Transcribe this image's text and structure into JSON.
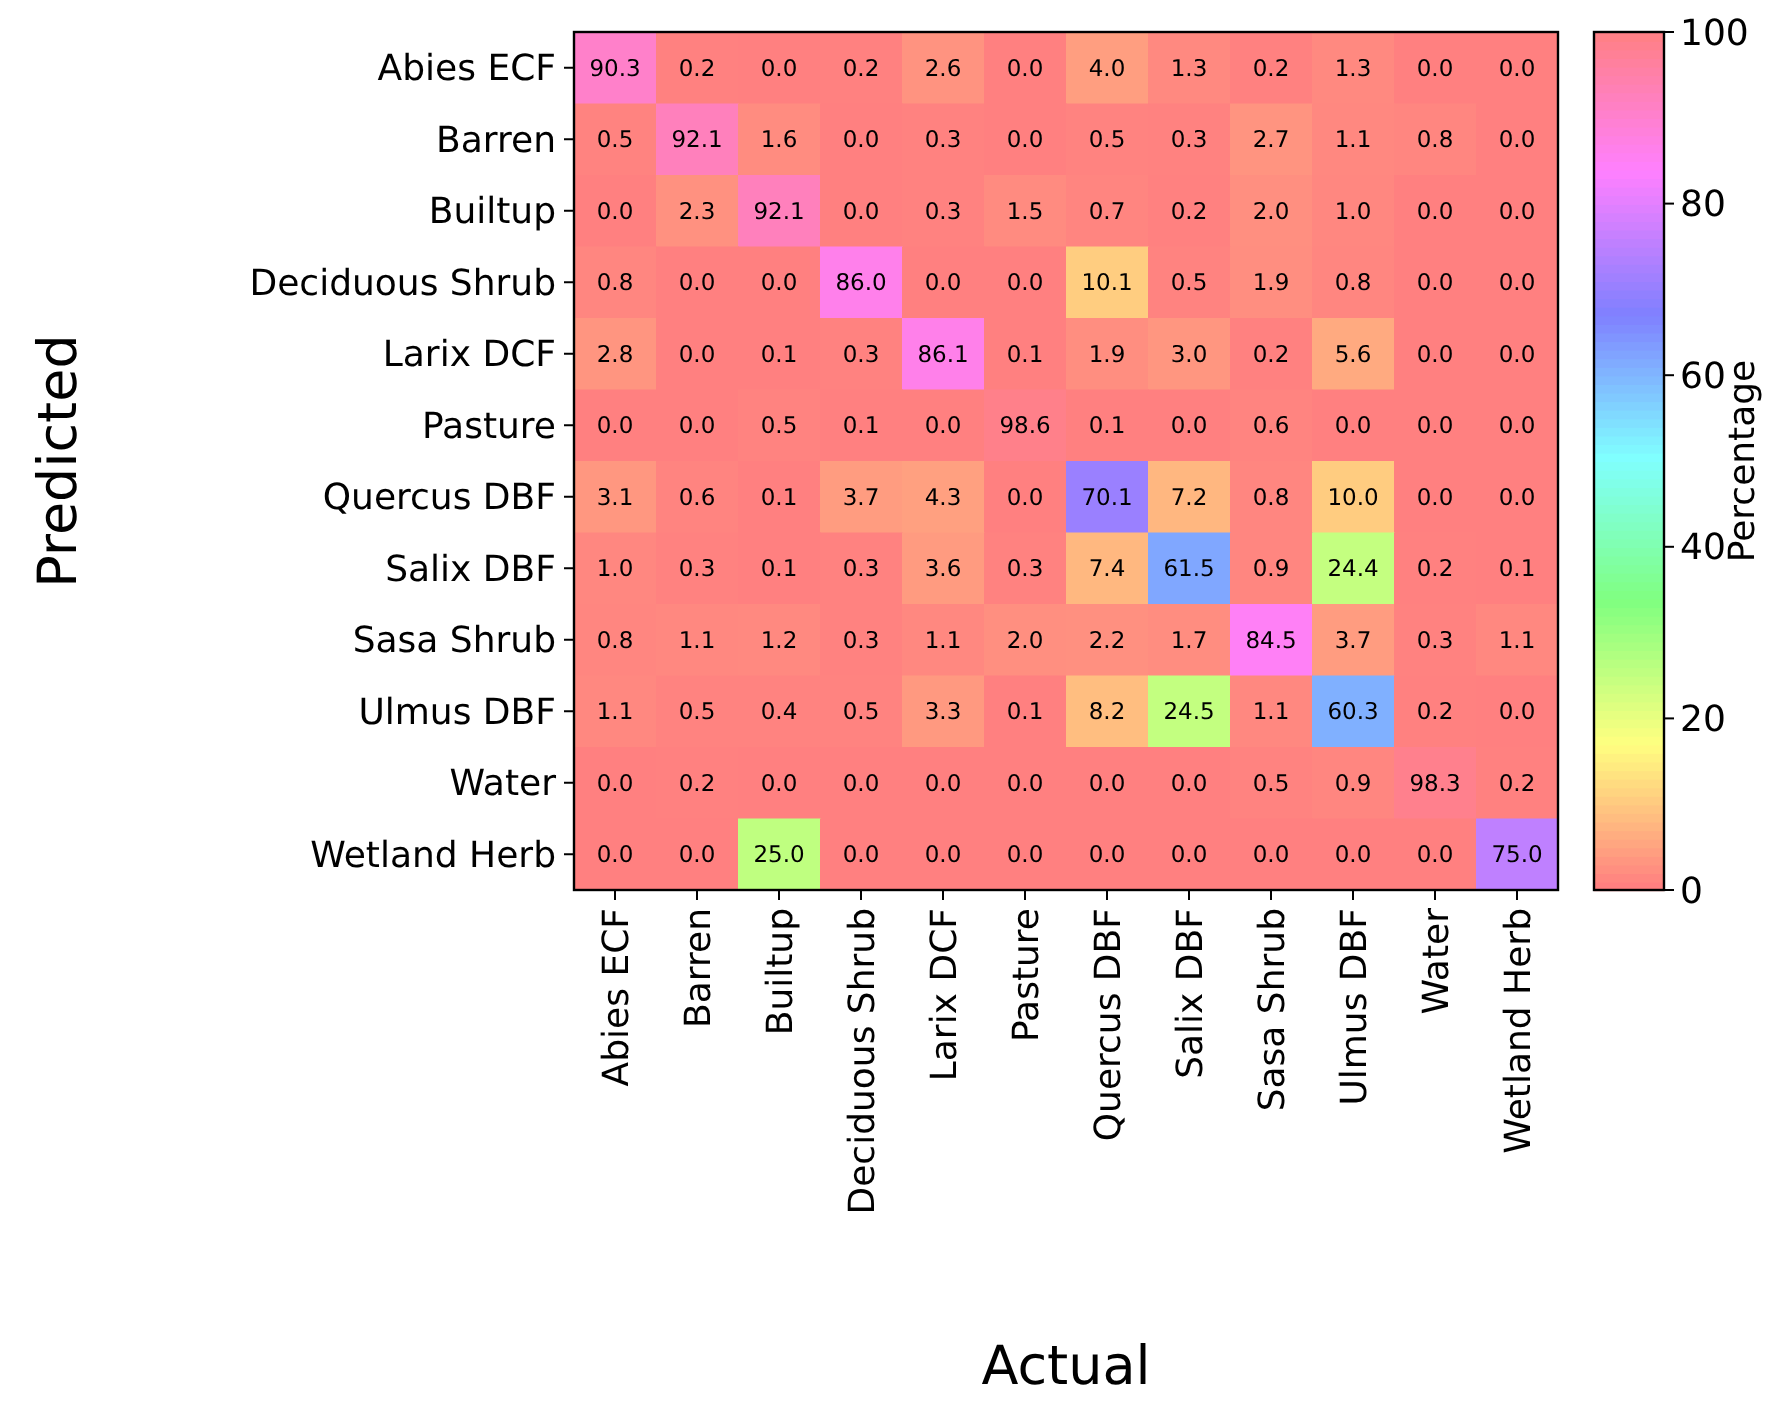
{
  "chart_data": {
    "type": "heatmap",
    "xlabel": "Actual",
    "ylabel": "Predicted",
    "clabel": "Percentage",
    "categories": [
      "Abies ECF",
      "Barren",
      "Builtup",
      "Deciduous Shrub",
      "Larix DCF",
      "Pasture",
      "Quercus DBF",
      "Salix DBF",
      "Sasa Shrub",
      "Ulmus DBF",
      "Water",
      "Wetland Herb"
    ],
    "y_categories": [
      "Abies ECF",
      "Barren",
      "Builtup",
      "Deciduous Shrub",
      "Larix DCF",
      "Pasture",
      "Quercus DBF",
      "Salix DBF",
      "Sasa Shrub",
      "Ulmus DBF",
      "Water",
      "Wetland Herb"
    ],
    "cells": [
      [
        90.3,
        0.2,
        0.0,
        0.2,
        2.6,
        0.0,
        4.0,
        1.3,
        0.2,
        1.3,
        0.0,
        0.0
      ],
      [
        0.5,
        92.1,
        1.6,
        0.0,
        0.3,
        0.0,
        0.5,
        0.3,
        2.7,
        1.1,
        0.8,
        0.0
      ],
      [
        0.0,
        2.3,
        92.1,
        0.0,
        0.3,
        1.5,
        0.7,
        0.2,
        2.0,
        1.0,
        0.0,
        0.0
      ],
      [
        0.8,
        0.0,
        0.0,
        86.0,
        0.0,
        0.0,
        10.1,
        0.5,
        1.9,
        0.8,
        0.0,
        0.0
      ],
      [
        2.8,
        0.0,
        0.1,
        0.3,
        86.1,
        0.1,
        1.9,
        3.0,
        0.2,
        5.6,
        0.0,
        0.0
      ],
      [
        0.0,
        0.0,
        0.5,
        0.1,
        0.0,
        98.6,
        0.1,
        0.0,
        0.6,
        0.0,
        0.0,
        0.0
      ],
      [
        3.1,
        0.6,
        0.1,
        3.7,
        4.3,
        0.0,
        70.1,
        7.2,
        0.8,
        10.0,
        0.0,
        0.0
      ],
      [
        1.0,
        0.3,
        0.1,
        0.3,
        3.6,
        0.3,
        7.4,
        61.5,
        0.9,
        24.4,
        0.2,
        0.1
      ],
      [
        0.8,
        1.1,
        1.2,
        0.3,
        1.1,
        2.0,
        2.2,
        1.7,
        84.5,
        3.7,
        0.3,
        1.1
      ],
      [
        1.1,
        0.5,
        0.4,
        0.5,
        3.3,
        0.1,
        8.2,
        24.5,
        1.1,
        60.3,
        0.2,
        0.0
      ],
      [
        0.0,
        0.2,
        0.0,
        0.0,
        0.0,
        0.0,
        0.0,
        0.0,
        0.5,
        0.9,
        98.3,
        0.2
      ],
      [
        0.0,
        0.0,
        25.0,
        0.0,
        0.0,
        0.0,
        0.0,
        0.0,
        0.0,
        0.0,
        0.0,
        75.0
      ]
    ],
    "cell_labels": [
      [
        "90.3",
        "0.2",
        "0.0",
        "0.2",
        "2.6",
        "0.0",
        "4.0",
        "1.3",
        "0.2",
        "1.3",
        "0.0",
        "0.0"
      ],
      [
        "0.5",
        "92.1",
        "1.6",
        "0.0",
        "0.3",
        "0.0",
        "0.5",
        "0.3",
        "2.7",
        "1.1",
        "0.8",
        "0.0"
      ],
      [
        "0.0",
        "2.3",
        "92.1",
        "0.0",
        "0.3",
        "1.5",
        "0.7",
        "0.2",
        "2.0",
        "1.0",
        "0.0",
        "0.0"
      ],
      [
        "0.8",
        "0.0",
        "0.0",
        "86.0",
        "0.0",
        "0.0",
        "10.1",
        "0.5",
        "1.9",
        "0.8",
        "0.0",
        "0.0"
      ],
      [
        "2.8",
        "0.0",
        "0.1",
        "0.3",
        "86.1",
        "0.1",
        "1.9",
        "3.0",
        "0.2",
        "5.6",
        "0.0",
        "0.0"
      ],
      [
        "0.0",
        "0.0",
        "0.5",
        "0.1",
        "0.0",
        "98.6",
        "0.1",
        "0.0",
        "0.6",
        "0.0",
        "0.0",
        "0.0"
      ],
      [
        "3.1",
        "0.6",
        "0.1",
        "3.7",
        "4.3",
        "0.0",
        "70.1",
        "7.2",
        "0.8",
        "10.0",
        "0.0",
        "0.0"
      ],
      [
        "1.0",
        "0.3",
        "0.1",
        "0.3",
        "3.6",
        "0.3",
        "7.4",
        "61.5",
        "0.9",
        "24.4",
        "0.2",
        "0.1"
      ],
      [
        "0.8",
        "1.1",
        "1.2",
        "0.3",
        "1.1",
        "2.0",
        "2.2",
        "1.7",
        "84.5",
        "3.7",
        "0.3",
        "1.1"
      ],
      [
        "1.1",
        "0.5",
        "0.4",
        "0.5",
        "3.3",
        "0.1",
        "8.2",
        "24.5",
        "1.1",
        "60.3",
        "0.2",
        "0.0"
      ],
      [
        "0.0",
        "0.2",
        "0.0",
        "0.0",
        "0.0",
        "0.0",
        "0.0",
        "0.0",
        "0.5",
        "0.9",
        "98.3",
        "0.2"
      ],
      [
        "0.0",
        "0.0",
        "25.0",
        "0.0",
        "0.0",
        "0.0",
        "0.0",
        "0.0",
        "0.0",
        "0.0",
        "0.0",
        "75.0"
      ]
    ],
    "clim": [
      0,
      100
    ],
    "cticks": [
      0,
      20,
      40,
      60,
      80,
      100
    ]
  }
}
